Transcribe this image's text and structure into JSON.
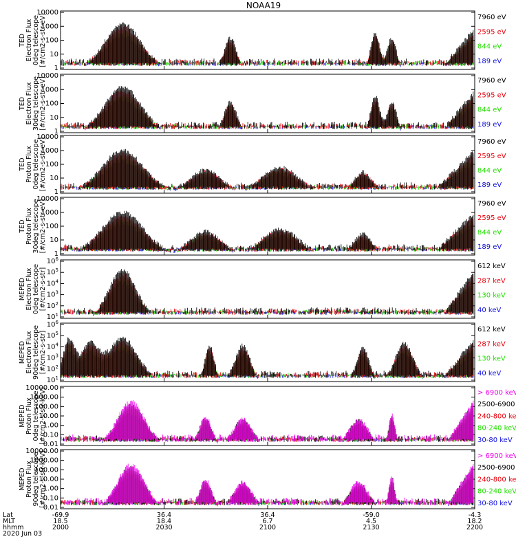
{
  "title": "NOAA19",
  "colors": {
    "black": "#000000",
    "red": "#e8000b",
    "green": "#22e000",
    "blue": "#1010e0",
    "magenta": "#f000f0"
  },
  "x_axis": {
    "row_labels": [
      "Lat",
      "MLT",
      "hhmm",
      "2020 Jun 03"
    ],
    "ticks": [
      {
        "lat": "-69.9",
        "mlt": "18.5",
        "hhmm": "2000"
      },
      {
        "lat": "36.4",
        "mlt": "18.4",
        "hhmm": "2030"
      },
      {
        "lat": "36.4",
        "mlt": "6.7",
        "hhmm": "2100"
      },
      {
        "lat": "-59.0",
        "mlt": "4.5",
        "hhmm": "2130"
      },
      {
        "lat": "-4.3",
        "mlt": "18.2",
        "hhmm": "2200"
      }
    ]
  },
  "chart_data": [
    {
      "type": "line",
      "ylabel": [
        "TED",
        "Electron Flux",
        "0deg telescope",
        "[#/cm2-s-str-eV]"
      ],
      "scale": "log",
      "yticks": [
        "1",
        "10",
        "100",
        "1000",
        "10000"
      ],
      "series": [
        {
          "name": "7960 eV",
          "color": "black"
        },
        {
          "name": "2595 eV",
          "color": "red"
        },
        {
          "name": "844 eV",
          "color": "green"
        },
        {
          "name": "189 eV",
          "color": "blue"
        }
      ]
    },
    {
      "type": "line",
      "ylabel": [
        "TED",
        "Electron Flux",
        "30deg telescope",
        "[#/cm2-s-str-eV]"
      ],
      "scale": "log",
      "yticks": [
        "1",
        "10",
        "100",
        "1000",
        "10000"
      ],
      "series": [
        {
          "name": "7960 eV",
          "color": "black"
        },
        {
          "name": "2595 eV",
          "color": "red"
        },
        {
          "name": "844 eV",
          "color": "green"
        },
        {
          "name": "189 eV",
          "color": "blue"
        }
      ]
    },
    {
      "type": "line",
      "ylabel": [
        "TED",
        "Proton Flux",
        "0deg telescope",
        "[#/cm2-s-str-eV]"
      ],
      "scale": "log",
      "yticks": [
        "1",
        "10",
        "100",
        "1000",
        "10000"
      ],
      "series": [
        {
          "name": "7960 eV",
          "color": "black"
        },
        {
          "name": "2595 eV",
          "color": "red"
        },
        {
          "name": "844 eV",
          "color": "green"
        },
        {
          "name": "189 eV",
          "color": "blue"
        }
      ]
    },
    {
      "type": "line",
      "ylabel": [
        "TED",
        "Proton Flux",
        "30deg telescope",
        "[#/cm2-s-str-eV]"
      ],
      "scale": "log",
      "yticks": [
        "1",
        "10",
        "100",
        "1000",
        "10000"
      ],
      "series": [
        {
          "name": "7960 eV",
          "color": "black"
        },
        {
          "name": "2595 eV",
          "color": "red"
        },
        {
          "name": "844 eV",
          "color": "green"
        },
        {
          "name": "189 eV",
          "color": "blue"
        }
      ]
    },
    {
      "type": "line",
      "ylabel": [
        "MEPED",
        "Electron Flux",
        "0deg telescope",
        "[#/cm2-s-str]"
      ],
      "scale": "log",
      "yticks": [
        "10^1",
        "10^2",
        "10^3",
        "10^4",
        "10^5",
        "10^6"
      ],
      "series": [
        {
          "name": "612 keV",
          "color": "black"
        },
        {
          "name": "287 keV",
          "color": "red"
        },
        {
          "name": "130 keV",
          "color": "green"
        },
        {
          "name": "40 keV",
          "color": "blue"
        }
      ]
    },
    {
      "type": "line",
      "ylabel": [
        "MEPED",
        "Electron Flux",
        "90deg telescope",
        "[#/cm2-s-str]"
      ],
      "scale": "log",
      "yticks": [
        "10^1",
        "10^2",
        "10^3",
        "10^4",
        "10^5",
        "10^6"
      ],
      "series": [
        {
          "name": "612 keV",
          "color": "black"
        },
        {
          "name": "287 keV",
          "color": "red"
        },
        {
          "name": "130 keV",
          "color": "green"
        },
        {
          "name": "40 keV",
          "color": "blue"
        }
      ]
    },
    {
      "type": "line",
      "ylabel": [
        "MEPED",
        "Proton Flux",
        "0deg telescope",
        "[#/cm2-s-str-keV]"
      ],
      "scale": "log",
      "yticks": [
        "0.01",
        "0.10",
        "1.00",
        "10.00",
        "100.00",
        "1000.00",
        "10000.00"
      ],
      "series": [
        {
          "name": "> 6900 keV",
          "color": "magenta"
        },
        {
          "name": "2500-6900",
          "color": "black"
        },
        {
          "name": "240-800 keV",
          "color": "red"
        },
        {
          "name": "80-240 keV",
          "color": "green"
        },
        {
          "name": "30-80 keV",
          "color": "blue"
        }
      ]
    },
    {
      "type": "line",
      "ylabel": [
        "MEPED",
        "Proton Flux",
        "90deg telescope",
        "[#/cm2-s-str-keV]"
      ],
      "scale": "log",
      "yticks": [
        "0.01",
        "0.10",
        "1.00",
        "10.00",
        "100.00",
        "1000.00",
        "10000.00"
      ],
      "series": [
        {
          "name": "> 6900 keV",
          "color": "magenta"
        },
        {
          "name": "2500-6900",
          "color": "black"
        },
        {
          "name": "240-800 keV",
          "color": "red"
        },
        {
          "name": "80-240 keV",
          "color": "green"
        },
        {
          "name": "30-80 keV",
          "color": "blue"
        }
      ]
    }
  ]
}
